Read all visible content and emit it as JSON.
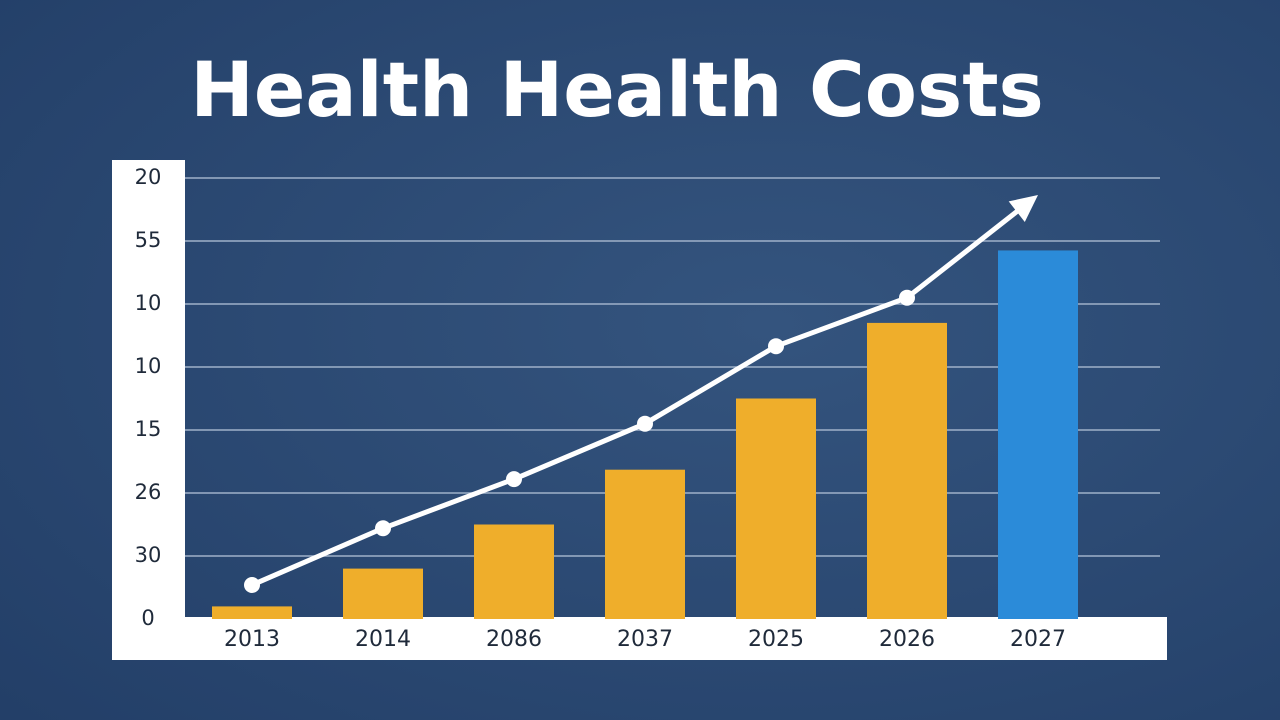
{
  "chart_data": {
    "type": "bar",
    "title": "Health Health Costs",
    "categories": [
      "2013",
      "2014",
      "2086",
      "2037",
      "2025",
      "2026",
      "2027"
    ],
    "series": [
      {
        "type": "bar",
        "colors": [
          "#efae2b",
          "#efae2b",
          "#efae2b",
          "#efae2b",
          "#efae2b",
          "#efae2b",
          "#2b8bd9"
        ],
        "values": [
          0.2,
          0.8,
          1.5,
          2.37,
          3.5,
          4.7,
          5.85
        ]
      },
      {
        "type": "line",
        "color": "#ffffff",
        "values": [
          0.54,
          1.44,
          2.22,
          3.1,
          4.33,
          5.1,
          6.73
        ]
      }
    ],
    "ylim": [
      0,
      7
    ],
    "yticks": [
      0,
      {
        "value": 1,
        "label": "30"
      },
      {
        "value": 2,
        "label": "26"
      },
      {
        "value": 3,
        "label": "15"
      },
      {
        "value": 4,
        "label": "10"
      },
      {
        "value": 5,
        "label": "10"
      },
      {
        "value": 6,
        "label": "55"
      },
      {
        "value": 7,
        "label": "20"
      }
    ],
    "grid": true
  }
}
